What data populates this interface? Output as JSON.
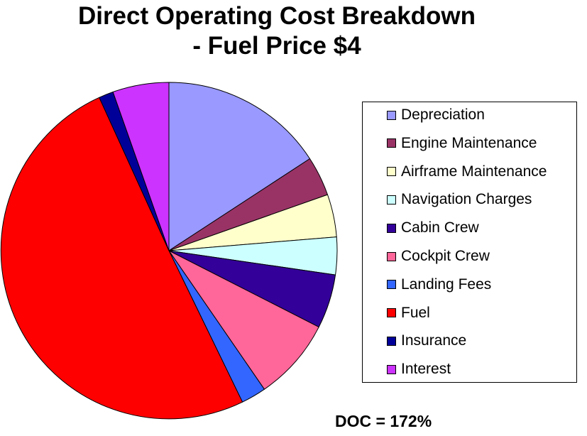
{
  "chart_data": {
    "type": "pie",
    "title_lines": [
      "Direct Operating Cost Breakdown",
      "- Fuel Price $4"
    ],
    "start_angle_deg": 0,
    "direction": "clockwise",
    "slices": [
      {
        "label": "Depreciation",
        "value": 15.8,
        "color": "#9999ff"
      },
      {
        "label": "Engine Maintenance",
        "value": 3.8,
        "color": "#993366"
      },
      {
        "label": "Airframe Maintenance",
        "value": 4.1,
        "color": "#ffffcc"
      },
      {
        "label": "Navigation Charges",
        "value": 3.6,
        "color": "#ccffff"
      },
      {
        "label": "Cabin Crew",
        "value": 5.2,
        "color": "#330099"
      },
      {
        "label": "Cockpit Crew",
        "value": 7.9,
        "color": "#ff6699"
      },
      {
        "label": "Landing Fees",
        "value": 2.4,
        "color": "#3366ff"
      },
      {
        "label": "Fuel",
        "value": 50.4,
        "color": "#ff0000"
      },
      {
        "label": "Insurance",
        "value": 1.4,
        "color": "#000099"
      },
      {
        "label": "Interest",
        "value": 5.4,
        "color": "#cc33ff"
      }
    ],
    "legend": {
      "position": "right"
    }
  },
  "footnote": "DOC = 172%"
}
